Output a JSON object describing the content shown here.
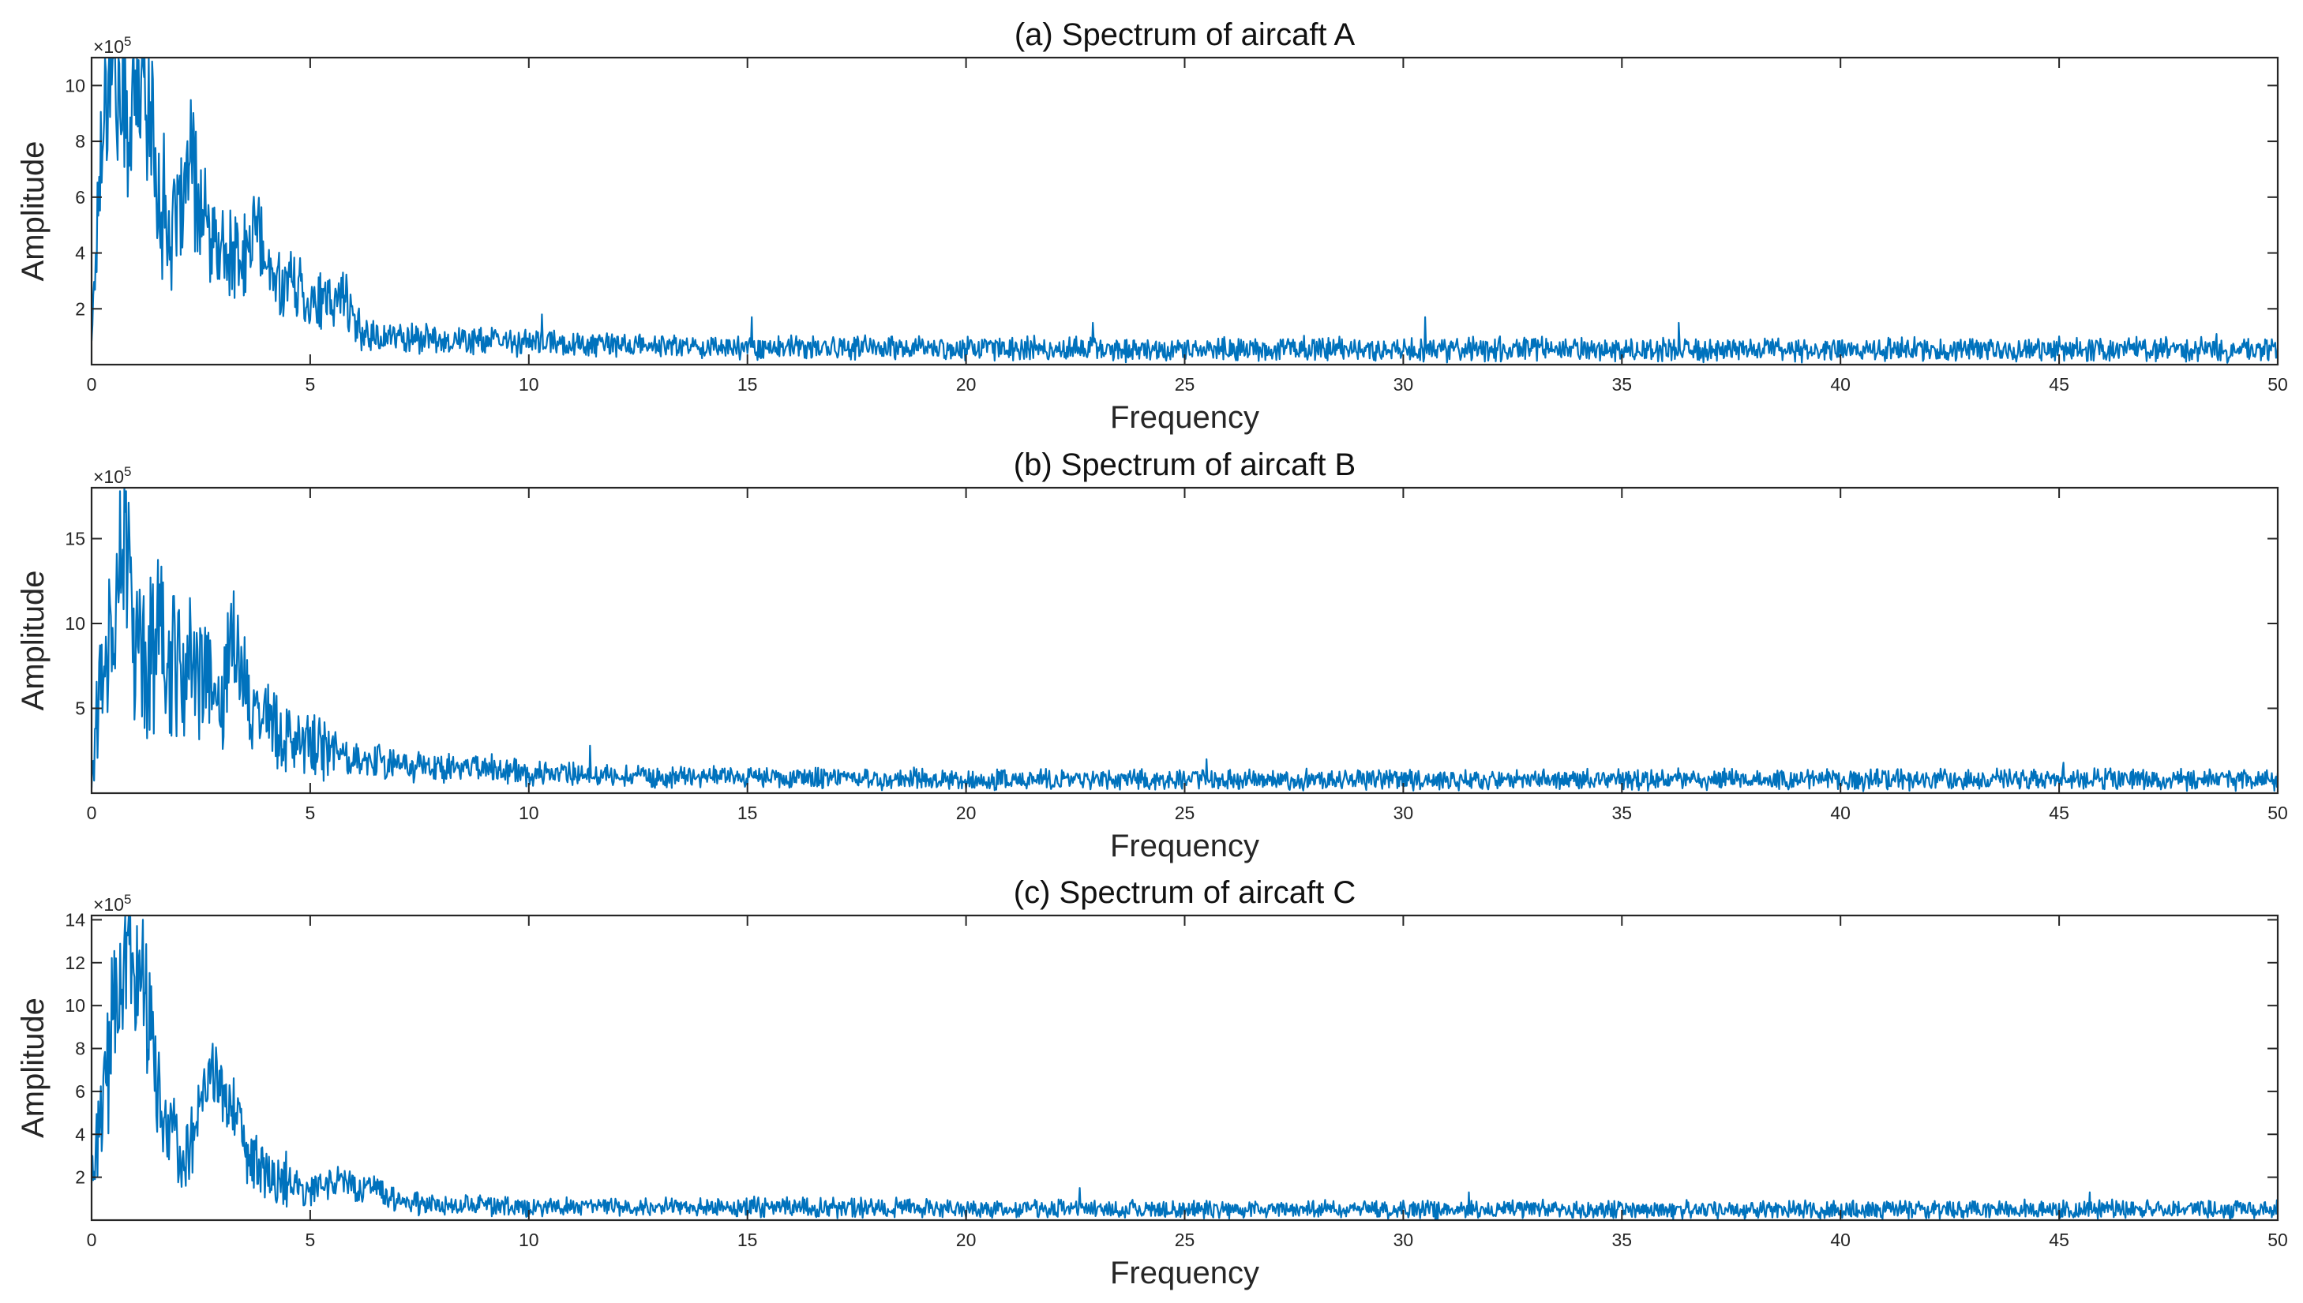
{
  "colors": {
    "line": "#0072bd",
    "axes": "#262626",
    "background": "#ffffff"
  },
  "chart_data": [
    {
      "type": "line",
      "title": "(a) Spectrum of aircaft A",
      "xlabel": "Frequency",
      "ylabel": "Amplitude",
      "y_exponent_label": "×10",
      "y_exponent_power": "5",
      "xlim": [
        0,
        50
      ],
      "ylim": [
        0,
        11
      ],
      "x_ticks": [
        "0",
        "5",
        "10",
        "15",
        "20",
        "25",
        "30",
        "35",
        "40",
        "45",
        "50"
      ],
      "y_ticks": [
        "2",
        "4",
        "6",
        "8",
        "10"
      ],
      "grid": false,
      "series": [
        {
          "x": [
            0,
            0.25,
            0.5,
            0.75,
            1.0,
            1.25,
            1.5,
            1.75,
            2.0,
            2.25,
            2.5,
            2.75,
            3.0,
            3.25,
            3.5,
            3.75,
            4.0,
            4.25,
            4.5,
            4.75,
            5.0,
            5.25,
            5.5,
            5.75,
            6.0,
            6.5,
            7.0,
            7.5,
            8.0,
            9.0,
            10.0,
            11.0,
            12.0,
            14.0,
            16.0,
            20.0,
            25.0,
            30.0,
            35.0,
            40.0,
            45.0,
            50.0
          ],
          "y": [
            1.0,
            9.0,
            11.0,
            8.5,
            9.5,
            10.3,
            6.5,
            5.0,
            4.5,
            7.3,
            5.5,
            4.2,
            4.0,
            3.8,
            3.6,
            5.2,
            3.3,
            3.0,
            3.0,
            2.8,
            2.3,
            2.2,
            2.0,
            2.8,
            1.4,
            1.0,
            1.0,
            0.95,
            0.9,
            0.85,
            0.8,
            0.75,
            0.7,
            0.65,
            0.6,
            0.6,
            0.55,
            0.55,
            0.55,
            0.55,
            0.55,
            0.5
          ],
          "noise": [
            0.6,
            2.6,
            2.6,
            2.6,
            2.6,
            2.6,
            2.3,
            2.0,
            2.0,
            2.0,
            1.8,
            1.6,
            1.6,
            1.4,
            1.4,
            1.2,
            1.2,
            1.0,
            1.0,
            1.0,
            1.0,
            0.9,
            0.9,
            0.8,
            0.6,
            0.5,
            0.5,
            0.45,
            0.45,
            0.4,
            0.4,
            0.4,
            0.35,
            0.35,
            0.35,
            0.35,
            0.35,
            0.35,
            0.35,
            0.35,
            0.35,
            0.35
          ],
          "peaks": [
            [
              0.4,
              11.0
            ],
            [
              0.7,
              8.4
            ],
            [
              1.2,
              10.3
            ],
            [
              2.05,
              7.4
            ],
            [
              2.3,
              6.5
            ],
            [
              3.8,
              5.3
            ],
            [
              5.75,
              3.3
            ],
            [
              10.3,
              1.8
            ],
            [
              15.1,
              1.7
            ],
            [
              22.9,
              1.5
            ],
            [
              30.5,
              1.7
            ],
            [
              36.3,
              1.5
            ],
            [
              48.6,
              1.1
            ]
          ]
        }
      ]
    },
    {
      "type": "line",
      "title": "(b) Spectrum of aircaft B",
      "xlabel": "Frequency",
      "ylabel": "Amplitude",
      "y_exponent_label": "×10",
      "y_exponent_power": "5",
      "xlim": [
        0,
        50
      ],
      "ylim": [
        0,
        18
      ],
      "x_ticks": [
        "0",
        "5",
        "10",
        "15",
        "20",
        "25",
        "30",
        "35",
        "40",
        "45",
        "50"
      ],
      "y_ticks": [
        "5",
        "10",
        "15"
      ],
      "grid": false,
      "series": [
        {
          "x": [
            0,
            0.25,
            0.5,
            0.75,
            1.0,
            1.25,
            1.5,
            1.75,
            2.0,
            2.25,
            2.5,
            2.75,
            3.0,
            3.25,
            3.5,
            3.75,
            4.0,
            4.5,
            5.0,
            5.5,
            6.0,
            7.0,
            8.0,
            9.0,
            10.0,
            11.0,
            12.0,
            14.0,
            16.0,
            20.0,
            25.0,
            30.0,
            35.0,
            40.0,
            45.0,
            50.0
          ],
          "y": [
            1.0,
            8.0,
            10.0,
            15.0,
            9.0,
            8.0,
            9.0,
            8.0,
            7.0,
            7.5,
            6.5,
            6.0,
            5.5,
            9.0,
            7.0,
            5.0,
            4.5,
            3.0,
            2.8,
            2.5,
            2.0,
            1.8,
            1.6,
            1.4,
            1.2,
            1.1,
            1.0,
            1.0,
            0.9,
            0.8,
            0.8,
            0.8,
            0.8,
            0.8,
            0.8,
            0.8
          ],
          "noise": [
            1.0,
            4.0,
            4.0,
            4.0,
            4.0,
            4.0,
            3.8,
            3.8,
            3.6,
            3.4,
            3.2,
            3.0,
            3.0,
            2.8,
            2.6,
            2.4,
            2.2,
            1.8,
            1.6,
            1.4,
            1.0,
            0.9,
            0.8,
            0.7,
            0.65,
            0.6,
            0.55,
            0.55,
            0.5,
            0.5,
            0.5,
            0.5,
            0.5,
            0.5,
            0.5,
            0.5
          ],
          "peaks": [
            [
              0.4,
              12.6
            ],
            [
              0.65,
              17.8
            ],
            [
              0.9,
              13.9
            ],
            [
              1.1,
              12.0
            ],
            [
              1.5,
              11.0
            ],
            [
              2.0,
              10.8
            ],
            [
              3.25,
              11.9
            ],
            [
              3.5,
              9.2
            ],
            [
              11.4,
              2.8
            ],
            [
              25.5,
              2.0
            ],
            [
              45.1,
              1.8
            ],
            [
              50.0,
              1.2
            ]
          ]
        }
      ]
    },
    {
      "type": "line",
      "title": "(c) Spectrum of aircaft C",
      "xlabel": "Frequency",
      "ylabel": "Amplitude",
      "y_exponent_label": "×10",
      "y_exponent_power": "5",
      "xlim": [
        0,
        50
      ],
      "ylim": [
        0,
        14.2
      ],
      "x_ticks": [
        "0",
        "5",
        "10",
        "15",
        "20",
        "25",
        "30",
        "35",
        "40",
        "45",
        "50"
      ],
      "y_ticks": [
        "2",
        "4",
        "6",
        "8",
        "10",
        "12",
        "14"
      ],
      "grid": false,
      "series": [
        {
          "x": [
            0,
            0.25,
            0.5,
            0.75,
            1.0,
            1.25,
            1.5,
            1.75,
            2.0,
            2.25,
            2.5,
            2.75,
            3.0,
            3.25,
            3.5,
            3.75,
            4.0,
            4.5,
            5.0,
            5.5,
            6.0,
            6.5,
            7.0,
            7.5,
            8.0,
            9.0,
            10.0,
            12.0,
            14.0,
            16.0,
            20.0,
            25.0,
            30.0,
            35.0,
            40.0,
            45.0,
            50.0
          ],
          "y": [
            2.0,
            5.0,
            10.0,
            12.0,
            12.5,
            10.0,
            6.0,
            4.0,
            3.0,
            4.0,
            5.5,
            6.5,
            6.0,
            5.0,
            3.5,
            2.5,
            2.0,
            1.5,
            1.5,
            1.8,
            1.6,
            1.3,
            1.0,
            0.8,
            0.75,
            0.7,
            0.65,
            0.6,
            0.6,
            0.6,
            0.55,
            0.5,
            0.5,
            0.5,
            0.5,
            0.5,
            0.5
          ],
          "noise": [
            0.8,
            3.0,
            3.0,
            3.0,
            3.0,
            2.6,
            2.0,
            1.8,
            1.6,
            1.6,
            1.6,
            1.6,
            1.6,
            1.4,
            1.2,
            1.1,
            1.0,
            0.8,
            0.7,
            0.7,
            0.6,
            0.6,
            0.5,
            0.45,
            0.4,
            0.4,
            0.4,
            0.35,
            0.35,
            0.4,
            0.35,
            0.35,
            0.35,
            0.35,
            0.35,
            0.35,
            0.35
          ],
          "peaks": [
            [
              0.5,
              9.4
            ],
            [
              0.8,
              13.4
            ],
            [
              0.85,
              14.2
            ],
            [
              1.15,
              11.9
            ],
            [
              1.35,
              8.4
            ],
            [
              1.75,
              4.9
            ],
            [
              2.7,
              7.5
            ],
            [
              4.45,
              3.2
            ],
            [
              22.6,
              1.5
            ],
            [
              31.5,
              1.3
            ],
            [
              45.7,
              1.3
            ]
          ]
        }
      ]
    }
  ]
}
